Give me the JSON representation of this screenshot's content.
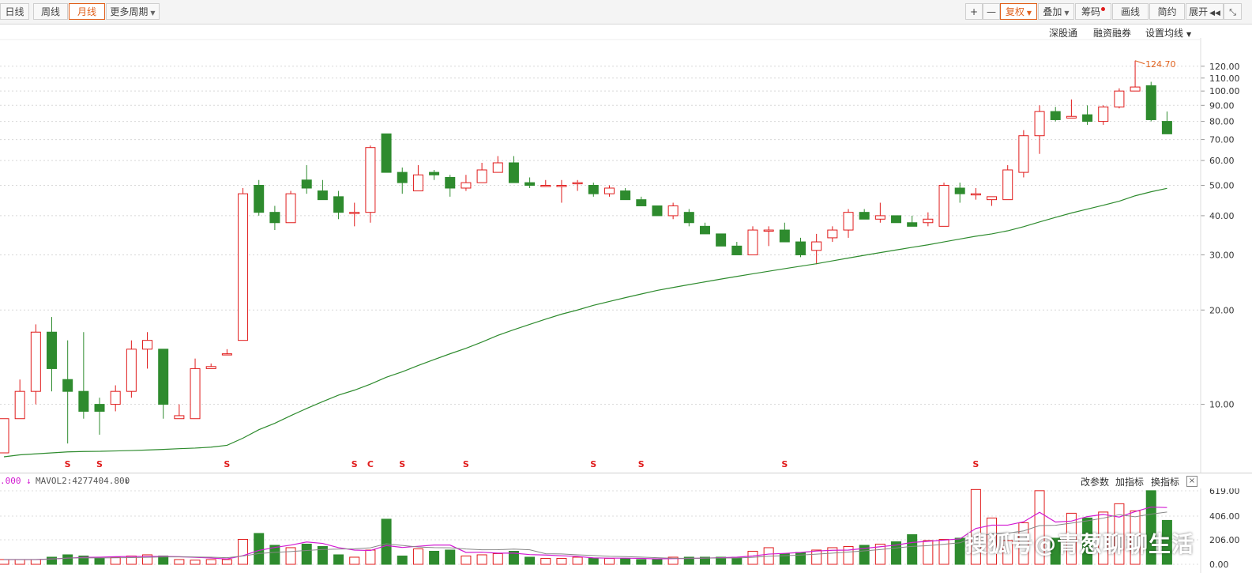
{
  "toolbar": {
    "left": [
      "日线",
      "周线",
      "月线",
      "更多周期"
    ],
    "active": "月线",
    "zoom_in": "+",
    "zoom_out": "—",
    "fuquan": "复权",
    "overlay": "叠加",
    "chips": "筹码",
    "draw": "画线",
    "simple": "简约",
    "expand": "展开"
  },
  "sublinks": {
    "szgt": "深股通",
    "margin": "融资融券",
    "ma_setting": "设置均线"
  },
  "price_axis": {
    "labels": [
      "120.00",
      "110.00",
      "100.00",
      "90.00",
      "80.00",
      "70.00",
      "60.00",
      "50.00",
      "40.00",
      "30.00",
      "20.00",
      "10.00"
    ],
    "max_annotation": "124.70"
  },
  "chart_data": {
    "type": "candlestick",
    "scale": "log",
    "ylim": [
      7,
      130
    ],
    "ohlc": [
      [
        7,
        9,
        7,
        9
      ],
      [
        9,
        12,
        9,
        11
      ],
      [
        11,
        18,
        10,
        17
      ],
      [
        17,
        19,
        11,
        13
      ],
      [
        12,
        16,
        7.5,
        11
      ],
      [
        11,
        17,
        9,
        9.5
      ],
      [
        10,
        10.5,
        8,
        9.5
      ],
      [
        10,
        11.5,
        9.5,
        11
      ],
      [
        11,
        16,
        10.5,
        15
      ],
      [
        15,
        17,
        13,
        16
      ],
      [
        15,
        15,
        9,
        10
      ],
      [
        9,
        10,
        9,
        9.2
      ],
      [
        9,
        14,
        9,
        13
      ],
      [
        13,
        13.5,
        13,
        13.2
      ],
      [
        14.5,
        15,
        14.5,
        14.5
      ],
      [
        16,
        49,
        16,
        47
      ],
      [
        50,
        52,
        40,
        41
      ],
      [
        41,
        43,
        36,
        38
      ],
      [
        38,
        48,
        38,
        47
      ],
      [
        52,
        58,
        47,
        49
      ],
      [
        48,
        52,
        45,
        45
      ],
      [
        46,
        48,
        39,
        41
      ],
      [
        41,
        44,
        37,
        41
      ],
      [
        41,
        67,
        38,
        66
      ],
      [
        73,
        73,
        55,
        55
      ],
      [
        55,
        57,
        47,
        51
      ],
      [
        48,
        58,
        48,
        54
      ],
      [
        55,
        56,
        52,
        54
      ],
      [
        53,
        54,
        46,
        49
      ],
      [
        49,
        54,
        48,
        51
      ],
      [
        51,
        59,
        51,
        56
      ],
      [
        55,
        62,
        55,
        59
      ],
      [
        59,
        62,
        51,
        51
      ],
      [
        51,
        53,
        49,
        50
      ],
      [
        50,
        52,
        50,
        50
      ],
      [
        50,
        52,
        44,
        50
      ],
      [
        51,
        52,
        48,
        51
      ],
      [
        50,
        51,
        46,
        47
      ],
      [
        47,
        50,
        46,
        49
      ],
      [
        48,
        49,
        45,
        45
      ],
      [
        45,
        46,
        44,
        43
      ],
      [
        43,
        43,
        40,
        40
      ],
      [
        40,
        44,
        39,
        43
      ],
      [
        41,
        42,
        37,
        38
      ],
      [
        37,
        38,
        35,
        35
      ],
      [
        35,
        35,
        32,
        32
      ],
      [
        32,
        33,
        30,
        30
      ],
      [
        30,
        37,
        30,
        36
      ],
      [
        36,
        37,
        32,
        36
      ],
      [
        36,
        38,
        33,
        33
      ],
      [
        33,
        34,
        29.5,
        30
      ],
      [
        31,
        35,
        28,
        33
      ],
      [
        34,
        37,
        33,
        36
      ],
      [
        36,
        42,
        34,
        41
      ],
      [
        41,
        42,
        39,
        39
      ],
      [
        39,
        44,
        38,
        40
      ],
      [
        40,
        40,
        38,
        38
      ],
      [
        38,
        40,
        37,
        37
      ],
      [
        38,
        41,
        37,
        39
      ],
      [
        37,
        51,
        37,
        50
      ],
      [
        49,
        51,
        44,
        47
      ],
      [
        47,
        49,
        45,
        47
      ],
      [
        45,
        46,
        43,
        46
      ],
      [
        45,
        58,
        45,
        56
      ],
      [
        55,
        75,
        53,
        72
      ],
      [
        72,
        90,
        63,
        86
      ],
      [
        86,
        89,
        80,
        81
      ],
      [
        82,
        94,
        82,
        83
      ],
      [
        84,
        90,
        78,
        80
      ],
      [
        80,
        90,
        78,
        89
      ],
      [
        89,
        102,
        88,
        100
      ],
      [
        100,
        125,
        100,
        103
      ],
      [
        104,
        107,
        80,
        81
      ],
      [
        80,
        86,
        73,
        73
      ]
    ],
    "ma": [
      6.8,
      6.9,
      6.95,
      7.0,
      7.05,
      7.07,
      7.08,
      7.1,
      7.12,
      7.15,
      7.18,
      7.22,
      7.25,
      7.3,
      7.4,
      7.8,
      8.3,
      8.7,
      9.2,
      9.7,
      10.2,
      10.7,
      11.1,
      11.6,
      12.2,
      12.7,
      13.3,
      13.9,
      14.5,
      15.1,
      15.8,
      16.6,
      17.3,
      18.0,
      18.7,
      19.4,
      20.0,
      20.7,
      21.3,
      21.9,
      22.5,
      23.1,
      23.6,
      24.1,
      24.6,
      25.1,
      25.6,
      26.1,
      26.6,
      27.1,
      27.6,
      28.1,
      28.7,
      29.3,
      29.9,
      30.5,
      31.1,
      31.7,
      32.3,
      33.0,
      33.7,
      34.4,
      35.0,
      35.8,
      36.9,
      38.2,
      39.5,
      40.8,
      42.0,
      43.2,
      44.5,
      46.3,
      47.7,
      48.9
    ],
    "volume": [
      40,
      40,
      40,
      60,
      80,
      70,
      50,
      60,
      70,
      80,
      70,
      40,
      35,
      40,
      40,
      210,
      260,
      160,
      140,
      170,
      150,
      80,
      60,
      120,
      380,
      70,
      130,
      110,
      120,
      70,
      80,
      90,
      110,
      60,
      50,
      50,
      60,
      50,
      50,
      50,
      40,
      40,
      60,
      60,
      60,
      60,
      60,
      110,
      140,
      90,
      100,
      120,
      140,
      150,
      160,
      170,
      190,
      250,
      200,
      210,
      220,
      630,
      390,
      200,
      350,
      620,
      220,
      430,
      390,
      440,
      510,
      450,
      620,
      370
    ],
    "volume_axis": [
      "619.00",
      "406.00",
      "206.00",
      "0.00"
    ]
  },
  "signals": [
    {
      "i": 4,
      "label": "S"
    },
    {
      "i": 6,
      "label": "S"
    },
    {
      "i": 14,
      "label": "S"
    },
    {
      "i": 22,
      "label": "S"
    },
    {
      "i": 23,
      "label": "C"
    },
    {
      "i": 25,
      "label": "S"
    },
    {
      "i": 29,
      "label": "S"
    },
    {
      "i": 37,
      "label": "S"
    },
    {
      "i": 40,
      "label": "S"
    },
    {
      "i": 49,
      "label": "S"
    },
    {
      "i": 61,
      "label": "S"
    }
  ],
  "volume_panel": {
    "mavol1": ".000",
    "mavol2": "MAVOL2:4277404.800",
    "arrow": "↓",
    "tools": [
      "改参数",
      "加指标",
      "换指标"
    ],
    "close": "×"
  },
  "colors": {
    "up": "#e01b1b",
    "down": "#2e8b2e",
    "ma": "#2e8b2e",
    "mavol1": "#d21bd2",
    "mavol2": "#888888",
    "accent": "#e0601c"
  },
  "watermark": "搜狐号@青葱聊聊生活"
}
